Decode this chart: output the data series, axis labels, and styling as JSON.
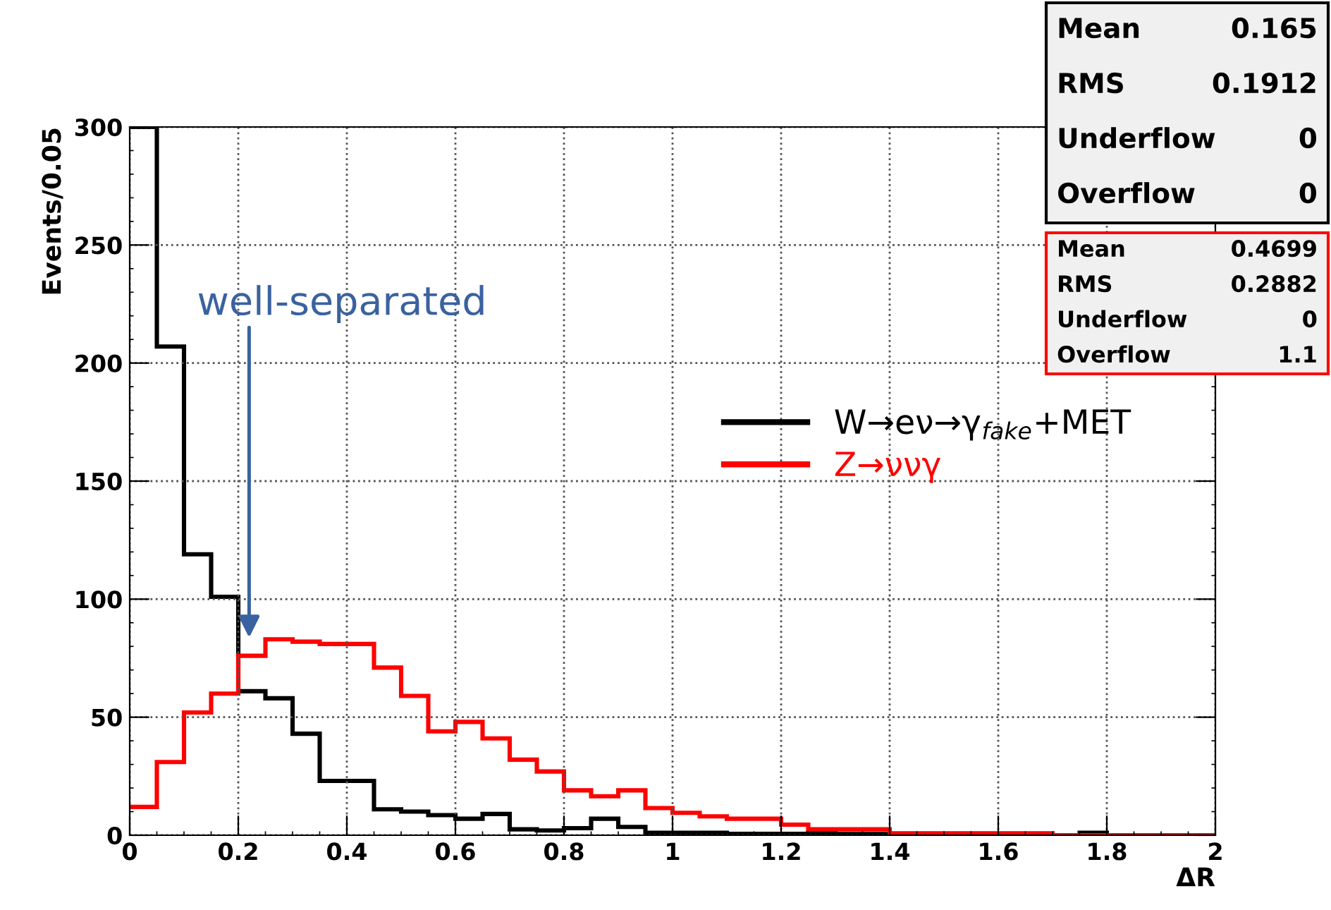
{
  "chart_data": {
    "type": "histogram",
    "xlabel": "ΔR",
    "ylabel": "Events/0.05",
    "bins": [
      0,
      0.05,
      0.1,
      0.15,
      0.2,
      0.25,
      0.3,
      0.35,
      0.4,
      0.45,
      0.5,
      0.55,
      0.6,
      0.65,
      0.7,
      0.75,
      0.8,
      0.85,
      0.9,
      0.95,
      1.0,
      1.05,
      1.1,
      1.15,
      1.2,
      1.25,
      1.3,
      1.35,
      1.4,
      1.45,
      1.5,
      1.55,
      1.6,
      1.65,
      1.7,
      1.75,
      1.8,
      1.85,
      1.9,
      1.95,
      2.0
    ],
    "series": [
      {
        "name": "W→eν→γ$_{fake}$+MET",
        "color": "#000000",
        "values": [
          300,
          207,
          119,
          101,
          61,
          58,
          43,
          23,
          23,
          11,
          10,
          8.5,
          7,
          9,
          2.5,
          2,
          3,
          7,
          3.5,
          1,
          1,
          1,
          0.6,
          0.6,
          0.6,
          1,
          0.5,
          0.5,
          0.3,
          0.3,
          0.3,
          0,
          0,
          0,
          0,
          1,
          0,
          0,
          0,
          0
        ]
      },
      {
        "name": "Z→ννγ",
        "color": "#ff0000",
        "values": [
          12,
          31,
          52,
          60,
          76,
          83,
          82,
          81,
          81,
          71,
          59,
          44,
          48,
          41,
          32,
          27,
          19,
          16.5,
          19,
          11.5,
          9.5,
          8,
          7,
          7,
          4.5,
          2.5,
          2.5,
          2.5,
          0.8,
          0.8,
          0.8,
          0.8,
          0.8,
          0.8,
          0,
          0,
          0,
          0,
          0,
          0
        ]
      }
    ],
    "xlim": [
      0,
      2
    ],
    "ylim": [
      0,
      300
    ],
    "xticks": [
      0,
      0.2,
      0.4,
      0.6,
      0.8,
      1,
      1.2,
      1.4,
      1.6,
      1.8,
      2
    ],
    "yticks": [
      0,
      50,
      100,
      150,
      200,
      250,
      300
    ],
    "grid": true,
    "legend": "right",
    "annotations": [
      "well-separated",
      "Mean 0.165",
      "RMS 0.1912",
      "Underflow 0",
      "Overflow 0",
      "Mean 0.4699",
      "RMS 0.2882",
      "Underflow 0",
      "Overflow 1.1"
    ]
  }
}
